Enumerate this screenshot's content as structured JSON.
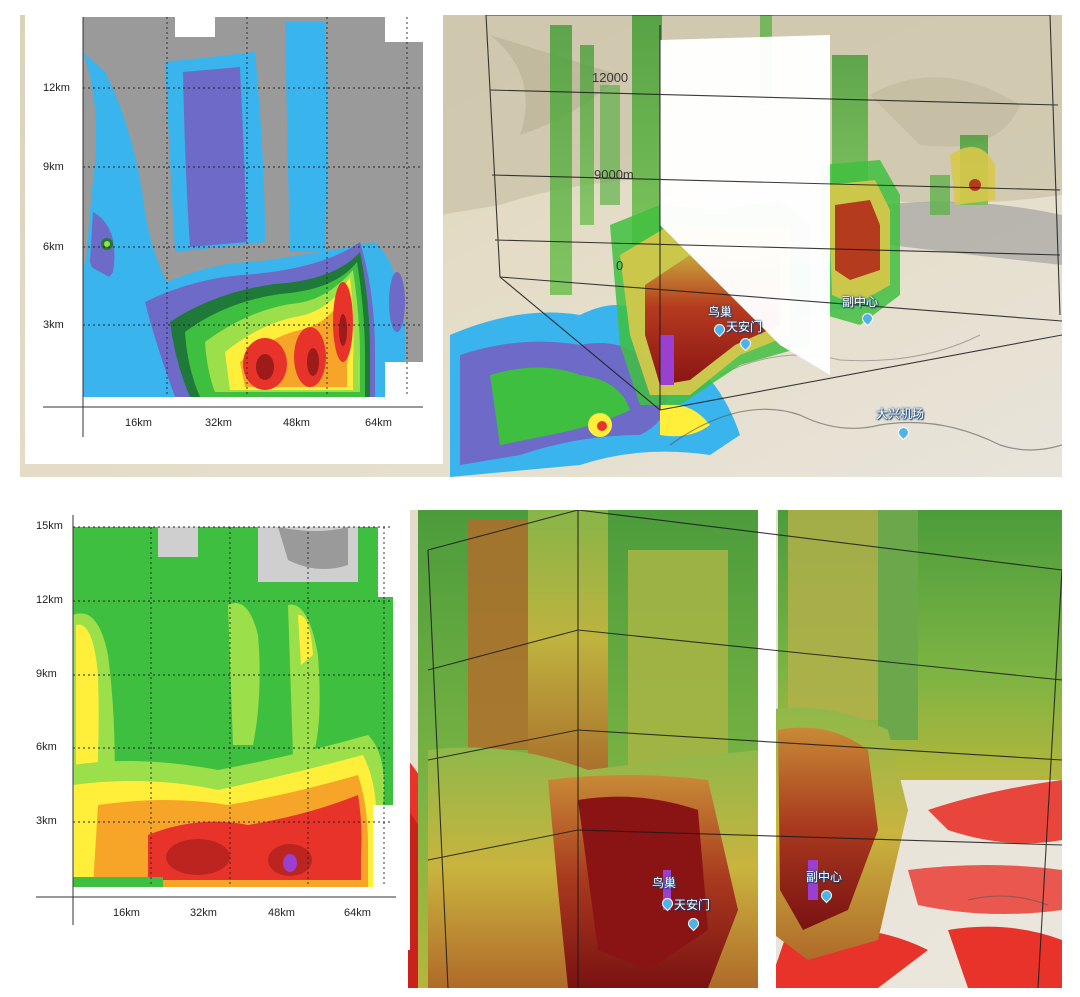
{
  "colors": {
    "reflectivity_scale": [
      "#9a9a9a",
      "#3ab4ec",
      "#6d6bc7",
      "#1f7a3a",
      "#3fbf3f",
      "#9be04a",
      "#ffef3a",
      "#f7a529",
      "#e8332a",
      "#9e1b1b",
      "#9a3fd0"
    ],
    "background_grey": "#9a9a9a",
    "map_label_blue": "#1a4f8a"
  },
  "top": {
    "cross_section": {
      "y_ticks": [
        "12km",
        "9km",
        "6km",
        "3km"
      ],
      "x_ticks": [
        "16km",
        "32km",
        "48km",
        "64km"
      ]
    },
    "view3d": {
      "altitude_labels": [
        "12000",
        "9000m",
        "0"
      ],
      "places": [
        {
          "id": "niaochao",
          "label": "鸟巢"
        },
        {
          "id": "tiananmen",
          "label": "天安门"
        },
        {
          "id": "fuzhongxin",
          "label": "副中心"
        },
        {
          "id": "daxing",
          "label": "大兴机场"
        }
      ]
    }
  },
  "bottom": {
    "cross_section": {
      "y_ticks": [
        "15km",
        "12km",
        "9km",
        "6km",
        "3km"
      ],
      "x_ticks": [
        "16km",
        "32km",
        "48km",
        "64km"
      ]
    },
    "view3d": {
      "places": [
        {
          "id": "niaochao",
          "label": "鸟巢"
        },
        {
          "id": "tiananmen",
          "label": "天安门"
        },
        {
          "id": "fuzhongxin",
          "label": "副中心"
        }
      ]
    }
  }
}
